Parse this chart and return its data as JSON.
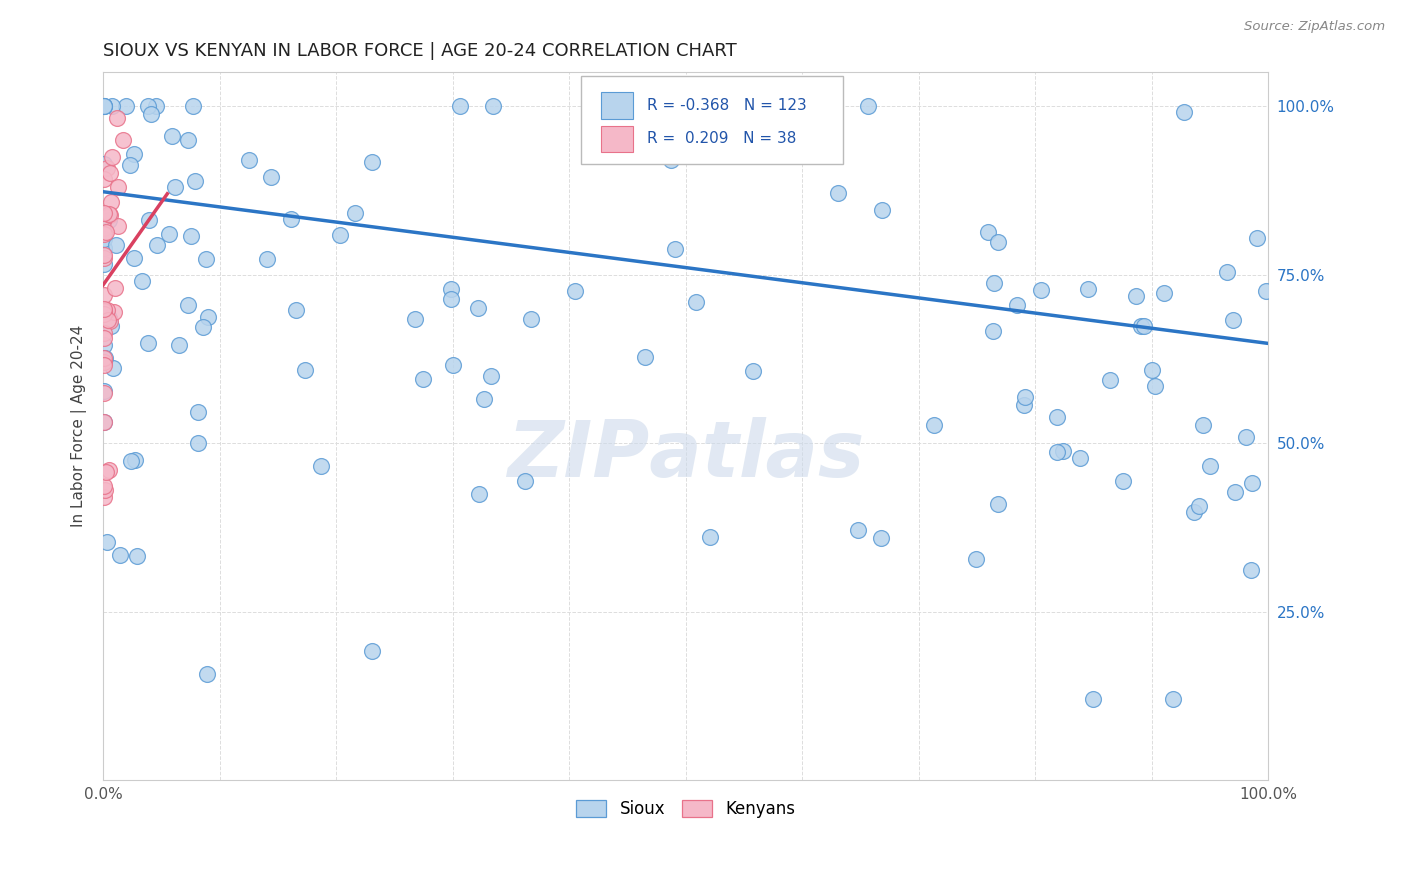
{
  "title": "SIOUX VS KENYAN IN LABOR FORCE | AGE 20-24 CORRELATION CHART",
  "source_text": "Source: ZipAtlas.com",
  "ylabel": "In Labor Force | Age 20-24",
  "xlim": [
    0.0,
    1.0
  ],
  "ylim": [
    0.0,
    1.05
  ],
  "ytick_labels_right": [
    "100.0%",
    "75.0%",
    "50.0%",
    "25.0%"
  ],
  "ytick_vals": [
    0.0,
    0.25,
    0.5,
    0.75,
    1.0
  ],
  "xtick_labels": [
    "0.0%",
    "",
    "",
    "",
    "",
    "",
    "",
    "",
    "",
    "",
    "100.0%"
  ],
  "xtick_vals": [
    0.0,
    0.1,
    0.2,
    0.3,
    0.4,
    0.5,
    0.6,
    0.7,
    0.8,
    0.9,
    1.0
  ],
  "sioux_color": "#b8d4ed",
  "kenyan_color": "#f5b8c8",
  "sioux_edge_color": "#5b9bd5",
  "kenyan_edge_color": "#e8728a",
  "sioux_line_color": "#2b75c5",
  "kenyan_line_color": "#d94060",
  "sioux_R": -0.368,
  "sioux_N": 123,
  "kenyan_R": 0.209,
  "kenyan_N": 38,
  "legend_R_color": "#2255aa",
  "background_color": "#ffffff",
  "grid_color": "#dddddd",
  "sioux_line_start_y": 0.873,
  "sioux_line_end_y": 0.648,
  "kenyan_line_start_y": 0.735,
  "kenyan_line_start_x": 0.0,
  "kenyan_line_end_x": 0.055,
  "kenyan_line_end_y": 0.87
}
